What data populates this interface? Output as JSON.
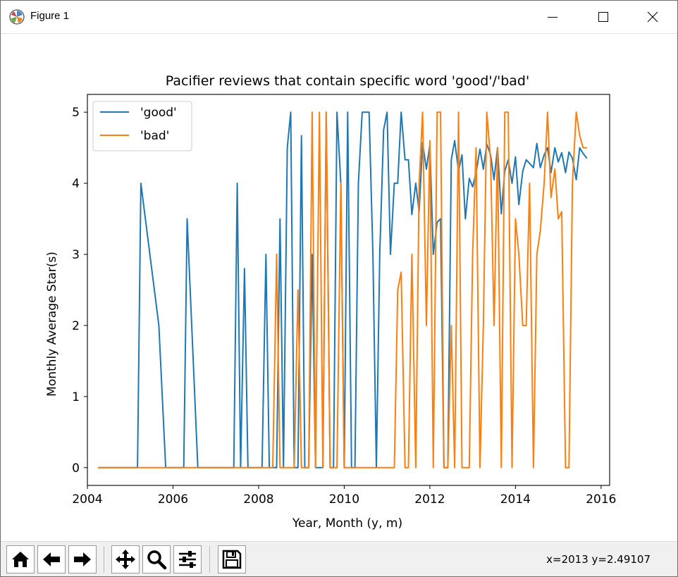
{
  "window": {
    "title": "Figure 1",
    "minimize_icon": "minimize-icon",
    "maximize_icon": "maximize-icon",
    "close_icon": "close-icon"
  },
  "toolbar": {
    "buttons": [
      "home-icon",
      "back-arrow-icon",
      "forward-arrow-icon",
      "pan-icon",
      "zoom-icon",
      "configure-subplots-icon",
      "save-icon"
    ],
    "status": "x=2013 y=2.49107"
  },
  "chart_data": {
    "type": "line",
    "title": "Pacifier reviews that contain specific word 'good'/'bad'",
    "xlabel": "Year, Month (y, m)",
    "ylabel": "Monthly Average Star(s)",
    "xlim": [
      2004.0,
      2016.2
    ],
    "ylim": [
      -0.25,
      5.25
    ],
    "xticks": [
      2004,
      2006,
      2008,
      2010,
      2012,
      2014,
      2016
    ],
    "yticks": [
      0,
      1,
      2,
      3,
      4,
      5
    ],
    "legend": "upper-left",
    "grid": false,
    "series": [
      {
        "name": "'good'",
        "color": "#1f77b4",
        "x": [
          2004.25,
          2005.17,
          2005.25,
          2005.67,
          2005.83,
          2006.0,
          2006.25,
          2006.33,
          2006.58,
          2006.75,
          2007.0,
          2007.42,
          2007.5,
          2007.58,
          2007.67,
          2007.75,
          2007.83,
          2008.0,
          2008.08,
          2008.17,
          2008.25,
          2008.33,
          2008.42,
          2008.5,
          2008.58,
          2008.67,
          2008.75,
          2008.83,
          2008.92,
          2009.0,
          2009.08,
          2009.17,
          2009.25,
          2009.33,
          2009.42,
          2009.5,
          2009.58,
          2009.67,
          2009.75,
          2009.83,
          2009.92,
          2010.0,
          2010.08,
          2010.17,
          2010.25,
          2010.33,
          2010.42,
          2010.5,
          2010.58,
          2010.67,
          2010.75,
          2010.83,
          2010.92,
          2011.0,
          2011.08,
          2011.17,
          2011.25,
          2011.33,
          2011.42,
          2011.5,
          2011.58,
          2011.67,
          2011.75,
          2011.83,
          2011.92,
          2012.0,
          2012.08,
          2012.17,
          2012.25,
          2012.33,
          2012.42,
          2012.5,
          2012.58,
          2012.67,
          2012.75,
          2012.83,
          2012.92,
          2013.0,
          2013.08,
          2013.17,
          2013.25,
          2013.33,
          2013.42,
          2013.5,
          2013.58,
          2013.67,
          2013.75,
          2013.83,
          2013.92,
          2014.0,
          2014.08,
          2014.17,
          2014.25,
          2014.33,
          2014.42,
          2014.5,
          2014.58,
          2014.67,
          2014.75,
          2014.83,
          2014.92,
          2015.0,
          2015.08,
          2015.17,
          2015.25,
          2015.33,
          2015.42,
          2015.5,
          2015.58,
          2015.67
        ],
        "y": [
          0,
          0,
          4.0,
          2.0,
          0,
          0,
          0,
          3.5,
          0,
          0,
          0,
          0,
          4.0,
          0,
          2.8,
          0,
          0,
          0,
          0,
          3.0,
          0,
          0,
          0,
          3.5,
          0,
          4.5,
          5.0,
          0,
          0,
          4.67,
          0,
          0,
          3.0,
          0,
          0,
          0,
          5.0,
          0,
          0,
          5.0,
          4.0,
          0,
          5.0,
          0,
          0,
          4.0,
          5.0,
          5.0,
          5.0,
          3.0,
          0,
          3.0,
          4.75,
          5.0,
          3.0,
          4.0,
          4.0,
          5.0,
          4.33,
          4.33,
          3.56,
          4.0,
          3.6,
          4.57,
          4.2,
          4.54,
          3.0,
          3.45,
          3.5,
          0,
          0,
          4.33,
          4.6,
          4.17,
          4.4,
          3.5,
          4.07,
          3.95,
          4.15,
          4.48,
          4.2,
          4.55,
          4.4,
          4.05,
          4.5,
          3.57,
          4.17,
          4.33,
          4.0,
          4.37,
          3.7,
          4.17,
          4.33,
          4.28,
          4.22,
          4.56,
          4.22,
          4.4,
          4.5,
          4.15,
          4.5,
          4.3,
          4.43,
          4.15,
          4.44,
          4.35,
          4.05,
          4.5,
          4.42,
          4.35
        ]
      },
      {
        "name": "'bad'",
        "color": "#ff7f0e",
        "x": [
          2004.25,
          2008.33,
          2008.42,
          2008.5,
          2008.58,
          2008.67,
          2008.75,
          2008.83,
          2008.92,
          2009.0,
          2009.08,
          2009.17,
          2009.25,
          2009.33,
          2009.42,
          2009.5,
          2009.58,
          2009.67,
          2009.75,
          2009.83,
          2009.92,
          2010.0,
          2010.17,
          2010.33,
          2010.5,
          2010.67,
          2010.83,
          2011.0,
          2011.17,
          2011.25,
          2011.33,
          2011.42,
          2011.5,
          2011.58,
          2011.67,
          2011.75,
          2011.83,
          2011.92,
          2012.0,
          2012.08,
          2012.17,
          2012.25,
          2012.33,
          2012.42,
          2012.5,
          2012.58,
          2012.67,
          2012.75,
          2012.83,
          2012.92,
          2013.0,
          2013.08,
          2013.17,
          2013.25,
          2013.33,
          2013.42,
          2013.5,
          2013.58,
          2013.67,
          2013.75,
          2013.83,
          2013.92,
          2014.0,
          2014.08,
          2014.17,
          2014.25,
          2014.33,
          2014.42,
          2014.5,
          2014.58,
          2014.67,
          2014.75,
          2014.83,
          2014.92,
          2015.0,
          2015.08,
          2015.17,
          2015.25,
          2015.33,
          2015.42,
          2015.5,
          2015.58,
          2015.67
        ],
        "y": [
          0,
          0,
          3.0,
          0,
          0,
          0,
          0,
          0,
          2.5,
          0,
          0,
          0,
          5.0,
          0,
          5.0,
          0,
          5.0,
          0,
          0,
          0,
          4.0,
          0,
          0,
          0,
          0,
          0,
          0,
          0,
          0,
          2.5,
          2.75,
          0,
          0,
          3.0,
          0,
          4.0,
          5.0,
          2.0,
          4.6,
          0,
          5.0,
          5.0,
          0,
          0,
          2.0,
          0,
          5.0,
          0,
          0,
          0,
          3.0,
          4.5,
          0,
          2.0,
          5.0,
          4.33,
          2.0,
          4.5,
          0,
          5.0,
          5.0,
          0,
          3.5,
          3.0,
          2.0,
          2.0,
          4.0,
          0,
          3.0,
          3.33,
          4.0,
          5.0,
          3.8,
          4.2,
          3.5,
          3.6,
          0,
          0,
          4.0,
          5.0,
          4.67,
          4.5,
          4.5
        ]
      }
    ]
  }
}
